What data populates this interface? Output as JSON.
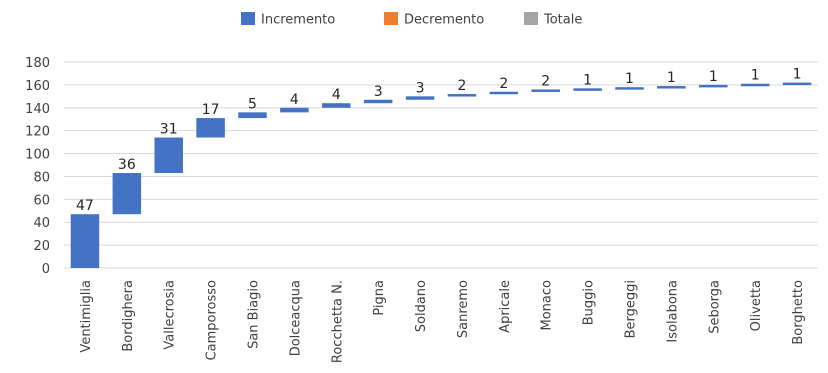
{
  "chart_data": {
    "type": "bar",
    "subtype": "waterfall",
    "title": "",
    "xlabel": "",
    "ylabel": "",
    "ylim": [
      0,
      180
    ],
    "yticks": [
      0,
      20,
      40,
      60,
      80,
      100,
      120,
      140,
      160,
      180
    ],
    "grid": true,
    "legend_position": "top",
    "legend": [
      {
        "label": "Incremento",
        "color": "#4472c4"
      },
      {
        "label": "Decremento",
        "color": "#ed7d31"
      },
      {
        "label": "Totale",
        "color": "#a5a5a5"
      }
    ],
    "categories": [
      "Ventimiglia",
      "Bordighera",
      "Vallecrosia",
      "Camporosso",
      "San Biagio",
      "Dolceacqua",
      "Rocchetta N.",
      "Pigna",
      "Soldano",
      "Sanremo",
      "Apricale",
      "Monaco",
      "Buggio",
      "Bergeggi",
      "Isolabona",
      "Seborga",
      "Olivetta",
      "Borghetto"
    ],
    "values": [
      47,
      36,
      31,
      17,
      5,
      4,
      4,
      3,
      3,
      2,
      2,
      2,
      1,
      1,
      1,
      1,
      1,
      1
    ]
  }
}
